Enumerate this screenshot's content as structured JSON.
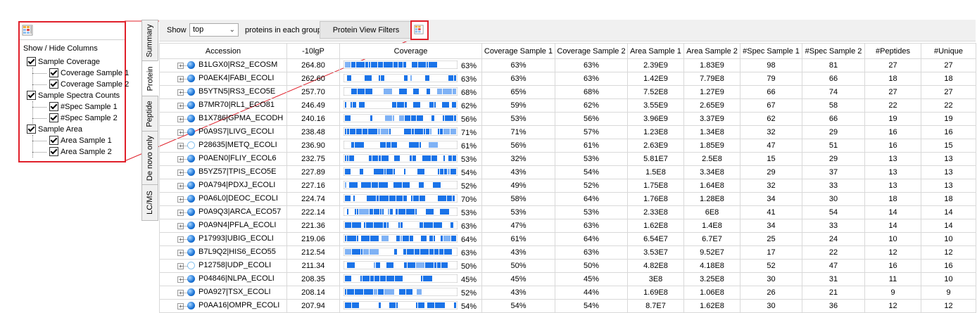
{
  "column_chooser": {
    "header": "Show / Hide Columns",
    "groups": [
      {
        "label": "Sample Coverage",
        "children": [
          "Coverage Sample 1",
          "Coverage Sample 2"
        ]
      },
      {
        "label": "Sample Spectra Counts",
        "children": [
          "#Spec Sample 1",
          "#Spec Sample 2"
        ]
      },
      {
        "label": "Sample Area",
        "children": [
          "Area Sample 1",
          "Area Sample 2"
        ]
      }
    ]
  },
  "tabs": [
    "Summary",
    "Protein",
    "Peptide",
    "De novo only",
    "LC/MS"
  ],
  "active_tab": "Protein",
  "toolbar": {
    "show_label": "Show",
    "show_value": "top",
    "after_label": "proteins in each group",
    "filters_button": "Protein View Filters"
  },
  "table": {
    "columns": [
      "Accession",
      "-10lgP",
      "Coverage",
      "Coverage Sample 1",
      "Coverage Sample 2",
      "Area Sample 1",
      "Area Sample 2",
      "#Spec Sample 1",
      "#Spec Sample 2",
      "#Peptides",
      "#Unique"
    ],
    "rows": [
      {
        "acc": "B1LGX0|RS2_ECOSM",
        "lgp": "264.80",
        "cov": "63%",
        "c1": "63%",
        "c2": "63%",
        "a1": "2.39E9",
        "a2": "1.83E9",
        "s1": "98",
        "s2": "81",
        "pep": "27",
        "uni": "27",
        "hollow": false
      },
      {
        "acc": "P0AEK4|FABI_ECOLI",
        "lgp": "262.60",
        "cov": "63%",
        "c1": "63%",
        "c2": "63%",
        "a1": "1.42E9",
        "a2": "7.79E8",
        "s1": "79",
        "s2": "66",
        "pep": "18",
        "uni": "18",
        "hollow": false
      },
      {
        "acc": "B5YTN5|RS3_ECO5E",
        "lgp": "257.70",
        "cov": "68%",
        "c1": "65%",
        "c2": "68%",
        "a1": "7.52E8",
        "a2": "1.27E9",
        "s1": "66",
        "s2": "74",
        "pep": "27",
        "uni": "27",
        "hollow": false
      },
      {
        "acc": "B7MR70|RL1_ECO81",
        "lgp": "246.49",
        "cov": "62%",
        "c1": "59%",
        "c2": "62%",
        "a1": "3.55E9",
        "a2": "2.65E9",
        "s1": "67",
        "s2": "58",
        "pep": "22",
        "uni": "22",
        "hollow": false
      },
      {
        "acc": "B1X786|GPMA_ECODH",
        "lgp": "240.16",
        "cov": "56%",
        "c1": "53%",
        "c2": "56%",
        "a1": "3.96E9",
        "a2": "3.37E9",
        "s1": "62",
        "s2": "66",
        "pep": "19",
        "uni": "19",
        "hollow": false
      },
      {
        "acc": "P0A9S7|LIVG_ECOLI",
        "lgp": "238.48",
        "cov": "71%",
        "c1": "71%",
        "c2": "57%",
        "a1": "1.23E8",
        "a2": "1.34E8",
        "s1": "32",
        "s2": "29",
        "pep": "16",
        "uni": "16",
        "hollow": false
      },
      {
        "acc": "P28635|METQ_ECOLI",
        "lgp": "236.90",
        "cov": "61%",
        "c1": "56%",
        "c2": "61%",
        "a1": "2.63E9",
        "a2": "1.85E9",
        "s1": "47",
        "s2": "51",
        "pep": "16",
        "uni": "15",
        "hollow": true
      },
      {
        "acc": "P0AEN0|FLIY_ECOL6",
        "lgp": "232.75",
        "cov": "53%",
        "c1": "32%",
        "c2": "53%",
        "a1": "5.81E7",
        "a2": "2.5E8",
        "s1": "15",
        "s2": "29",
        "pep": "13",
        "uni": "13",
        "hollow": false
      },
      {
        "acc": "B5YZ57|TPIS_ECO5E",
        "lgp": "227.89",
        "cov": "54%",
        "c1": "43%",
        "c2": "54%",
        "a1": "1.5E8",
        "a2": "3.34E8",
        "s1": "29",
        "s2": "37",
        "pep": "13",
        "uni": "13",
        "hollow": false
      },
      {
        "acc": "P0A794|PDXJ_ECOLI",
        "lgp": "227.16",
        "cov": "52%",
        "c1": "49%",
        "c2": "52%",
        "a1": "1.75E8",
        "a2": "1.64E8",
        "s1": "32",
        "s2": "33",
        "pep": "13",
        "uni": "13",
        "hollow": false
      },
      {
        "acc": "P0A6L0|DEOC_ECOLI",
        "lgp": "224.74",
        "cov": "70%",
        "c1": "58%",
        "c2": "64%",
        "a1": "1.76E8",
        "a2": "1.28E8",
        "s1": "34",
        "s2": "30",
        "pep": "18",
        "uni": "18",
        "hollow": false
      },
      {
        "acc": "P0A9Q3|ARCA_ECO57",
        "lgp": "222.14",
        "cov": "53%",
        "c1": "53%",
        "c2": "53%",
        "a1": "2.33E8",
        "a2": "6E8",
        "s1": "41",
        "s2": "54",
        "pep": "14",
        "uni": "14",
        "hollow": false
      },
      {
        "acc": "P0A9N4|PFLA_ECOLI",
        "lgp": "221.36",
        "cov": "63%",
        "c1": "47%",
        "c2": "63%",
        "a1": "1.62E8",
        "a2": "1.4E8",
        "s1": "34",
        "s2": "33",
        "pep": "14",
        "uni": "14",
        "hollow": false
      },
      {
        "acc": "P17993|UBIG_ECOLI",
        "lgp": "219.06",
        "cov": "64%",
        "c1": "61%",
        "c2": "64%",
        "a1": "6.54E7",
        "a2": "6.7E7",
        "s1": "25",
        "s2": "24",
        "pep": "10",
        "uni": "10",
        "hollow": false
      },
      {
        "acc": "B7L9Q2|HIS6_ECO55",
        "lgp": "212.54",
        "cov": "63%",
        "c1": "43%",
        "c2": "63%",
        "a1": "3.53E7",
        "a2": "9.52E7",
        "s1": "17",
        "s2": "22",
        "pep": "12",
        "uni": "12",
        "hollow": false
      },
      {
        "acc": "P12758|UDP_ECOLI",
        "lgp": "211.34",
        "cov": "50%",
        "c1": "50%",
        "c2": "50%",
        "a1": "4.82E8",
        "a2": "4.18E8",
        "s1": "52",
        "s2": "47",
        "pep": "16",
        "uni": "16",
        "hollow": true
      },
      {
        "acc": "P04846|NLPA_ECOLI",
        "lgp": "208.35",
        "cov": "45%",
        "c1": "45%",
        "c2": "45%",
        "a1": "3E8",
        "a2": "3.25E8",
        "s1": "30",
        "s2": "31",
        "pep": "11",
        "uni": "10",
        "hollow": false
      },
      {
        "acc": "P0A927|TSX_ECOLI",
        "lgp": "208.14",
        "cov": "52%",
        "c1": "43%",
        "c2": "44%",
        "a1": "1.69E8",
        "a2": "1.06E8",
        "s1": "26",
        "s2": "21",
        "pep": "9",
        "uni": "9",
        "hollow": false
      },
      {
        "acc": "P0AA16|OMPR_ECOLI",
        "lgp": "207.94",
        "cov": "54%",
        "c1": "54%",
        "c2": "54%",
        "a1": "8.7E7",
        "a2": "1.62E8",
        "s1": "30",
        "s2": "36",
        "pep": "12",
        "uni": "12",
        "hollow": false
      }
    ]
  },
  "colors": {
    "highlight_border": "#e0202a",
    "coverage_bar": "#1a73e8",
    "coverage_light": "#7fb2f5"
  }
}
